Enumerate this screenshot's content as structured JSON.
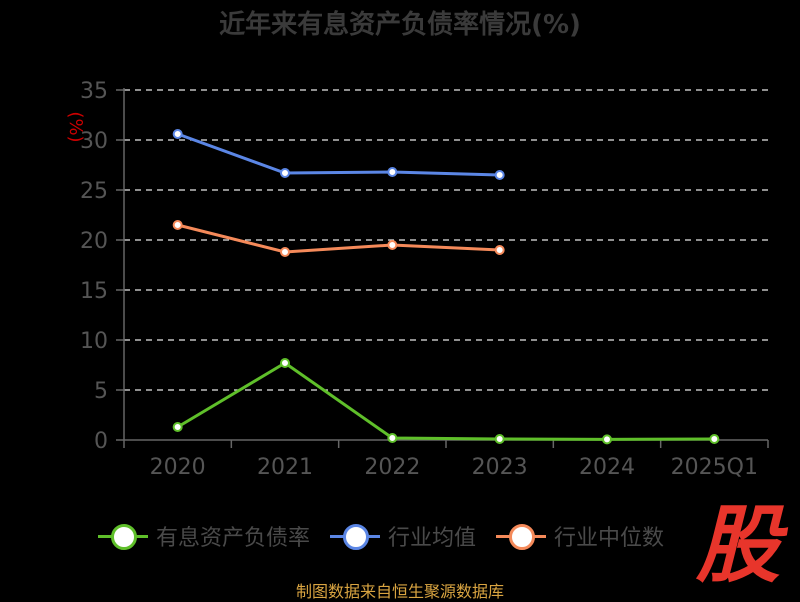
{
  "title": "近年来有息资产负债率情况(%)",
  "source_text": "制图数据来自恒生聚源数据库",
  "logo_text": "股",
  "colors": {
    "background": "#000000",
    "grid": "#e6e6e6",
    "axis": "#666666",
    "tick_text": "#555555",
    "ylabel": "#cc0000"
  },
  "legend": [
    {
      "label": "有息资产负债率",
      "color": "#5fbf2a"
    },
    {
      "label": "行业均值",
      "color": "#5b86e5"
    },
    {
      "label": "行业中位数",
      "color": "#f58a5a"
    }
  ],
  "chart_data": {
    "type": "line",
    "title": "近年来有息资产负债率情况(%)",
    "ylabel": "(%)",
    "xlabel": "",
    "categories": [
      "2020",
      "2021",
      "2022",
      "2023",
      "2024",
      "2025Q1"
    ],
    "ylim": [
      0,
      35
    ],
    "yticks": [
      0,
      5,
      10,
      15,
      20,
      25,
      30,
      35
    ],
    "grid": true,
    "legend_position": "bottom",
    "series": [
      {
        "name": "有息资产负债率",
        "color": "#5fbf2a",
        "values": [
          1.3,
          7.7,
          0.2,
          0.1,
          0.06,
          0.1
        ]
      },
      {
        "name": "行业均值",
        "color": "#5b86e5",
        "values": [
          30.6,
          26.7,
          26.8,
          26.5,
          null,
          null
        ]
      },
      {
        "name": "行业中位数",
        "color": "#f58a5a",
        "values": [
          21.5,
          18.8,
          19.5,
          19.0,
          null,
          null
        ]
      }
    ]
  }
}
